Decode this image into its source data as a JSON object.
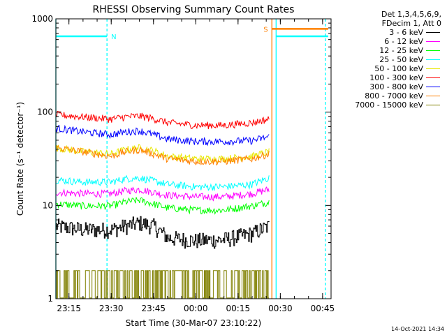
{
  "chart_data": {
    "type": "line",
    "title": "RHESSI Observing Summary Count Rates",
    "xlabel": "Start Time (30-Mar-07 23:10:22)",
    "ylabel": "Count Rate (s⁻¹ detector⁻¹)",
    "y_scale": "log",
    "ylim": [
      1,
      1000
    ],
    "yticks": [
      "1",
      "10",
      "100",
      "1000"
    ],
    "xlim": [
      "23:10:22",
      "00:48:00"
    ],
    "xticks": [
      "23:15",
      "23:30",
      "23:45",
      "00:00",
      "00:15",
      "00:30",
      "00:45"
    ],
    "legend_header": [
      "Det 1,3,4,5,6,9,",
      "FDecim 1, Att 0"
    ],
    "legend_position": "outside-right",
    "series": [
      {
        "name": "3 - 6 keV",
        "color": "#000000",
        "x": [
          "23:10:22",
          "23:20",
          "23:30",
          "23:35",
          "23:40",
          "23:45",
          "23:50",
          "00:00",
          "00:10",
          "00:20",
          "00:26"
        ],
        "y": [
          6,
          5.5,
          5.5,
          6,
          6.5,
          6,
          4.5,
          4.2,
          4.3,
          5,
          6
        ]
      },
      {
        "name": "6 - 12 keV",
        "color": "#ff00ff",
        "x": [
          "23:10:22",
          "23:20",
          "23:30",
          "23:35",
          "23:40",
          "23:45",
          "23:50",
          "00:00",
          "00:10",
          "00:20",
          "00:26"
        ],
        "y": [
          14,
          13.5,
          13.5,
          14.5,
          15,
          14,
          13,
          12.5,
          12.5,
          13.5,
          15
        ]
      },
      {
        "name": "12 - 25 keV",
        "color": "#00ff00",
        "x": [
          "23:10:22",
          "23:20",
          "23:30",
          "23:35",
          "23:40",
          "23:45",
          "23:50",
          "00:00",
          "00:10",
          "00:20",
          "00:26"
        ],
        "y": [
          10.5,
          10,
          10,
          11,
          11.5,
          10.5,
          9.5,
          9,
          9,
          10,
          11
        ]
      },
      {
        "name": "25 - 50 keV",
        "color": "#00ffff",
        "x": [
          "23:10:22",
          "23:20",
          "23:30",
          "23:35",
          "23:40",
          "23:45",
          "23:50",
          "00:00",
          "00:10",
          "00:20",
          "00:26"
        ],
        "y": [
          19,
          18,
          18,
          19.5,
          20,
          18.5,
          17,
          16,
          16,
          17,
          20
        ]
      },
      {
        "name": "50 - 100 keV",
        "color": "#e8e800",
        "x": [
          "23:10:22",
          "23:20",
          "23:30",
          "23:35",
          "23:40",
          "23:45",
          "23:50",
          "00:00",
          "00:10",
          "00:20",
          "00:26"
        ],
        "y": [
          42,
          38,
          36,
          40,
          42,
          39,
          34,
          32,
          32,
          34,
          38
        ]
      },
      {
        "name": "100 - 300 keV",
        "color": "#ff0000",
        "x": [
          "23:10:22",
          "23:20",
          "23:30",
          "23:35",
          "23:40",
          "23:45",
          "23:50",
          "00:00",
          "00:10",
          "00:20",
          "00:26"
        ],
        "y": [
          95,
          90,
          85,
          90,
          92,
          86,
          78,
          73,
          73,
          78,
          85
        ]
      },
      {
        "name": "300 - 800 keV",
        "color": "#0000ff",
        "x": [
          "23:10:22",
          "23:20",
          "23:30",
          "23:35",
          "23:40",
          "23:45",
          "23:50",
          "00:00",
          "00:10",
          "00:20",
          "00:26"
        ],
        "y": [
          68,
          62,
          58,
          62,
          64,
          58,
          52,
          49,
          49,
          50,
          55
        ]
      },
      {
        "name": "800 - 7000 keV",
        "color": "#ff8000",
        "x": [
          "23:10:22",
          "23:20",
          "23:30",
          "23:35",
          "23:40",
          "23:45",
          "23:50",
          "00:00",
          "00:10",
          "00:20",
          "00:26"
        ],
        "y": [
          42,
          38,
          34,
          38,
          40,
          36,
          32,
          30,
          30,
          32,
          36
        ]
      },
      {
        "name": "7000 - 15000 keV",
        "color": "#808000",
        "x": [
          "23:10:22",
          "23:20",
          "23:30",
          "23:35",
          "23:40",
          "23:45",
          "23:50",
          "00:00",
          "00:10",
          "00:20",
          "00:26"
        ],
        "y": [
          1.5,
          1.5,
          1.5,
          1.5,
          1.5,
          1.5,
          1.5,
          1.5,
          1.5,
          1.5,
          1.5
        ]
      }
    ],
    "flags": [
      {
        "label": "N",
        "color": "#00ffff",
        "value": 650,
        "start": "23:10:22",
        "end": "23:28:30",
        "label_at": "end"
      },
      {
        "label": "S",
        "color": "#ff8000",
        "value": 780,
        "start": "00:27:00",
        "end": "00:47:00",
        "label_at": "start"
      },
      {
        "label": "",
        "color": "#00ffff",
        "value": 650,
        "start": "00:28:30",
        "end": "00:47:00",
        "label_at": "none"
      }
    ],
    "boundaries": [
      {
        "time": "23:10:22",
        "color": "#00ffff",
        "style": "solid"
      },
      {
        "time": "23:28:30",
        "color": "#00ffff",
        "style": "dashed"
      },
      {
        "time": "00:27:00",
        "color": "#ff8000",
        "style": "solid"
      },
      {
        "time": "00:28:30",
        "color": "#00ffff",
        "style": "solid"
      },
      {
        "time": "00:46:00",
        "color": "#00ffff",
        "style": "dashed"
      }
    ]
  },
  "timestamp": "14-Oct-2021 14:34"
}
